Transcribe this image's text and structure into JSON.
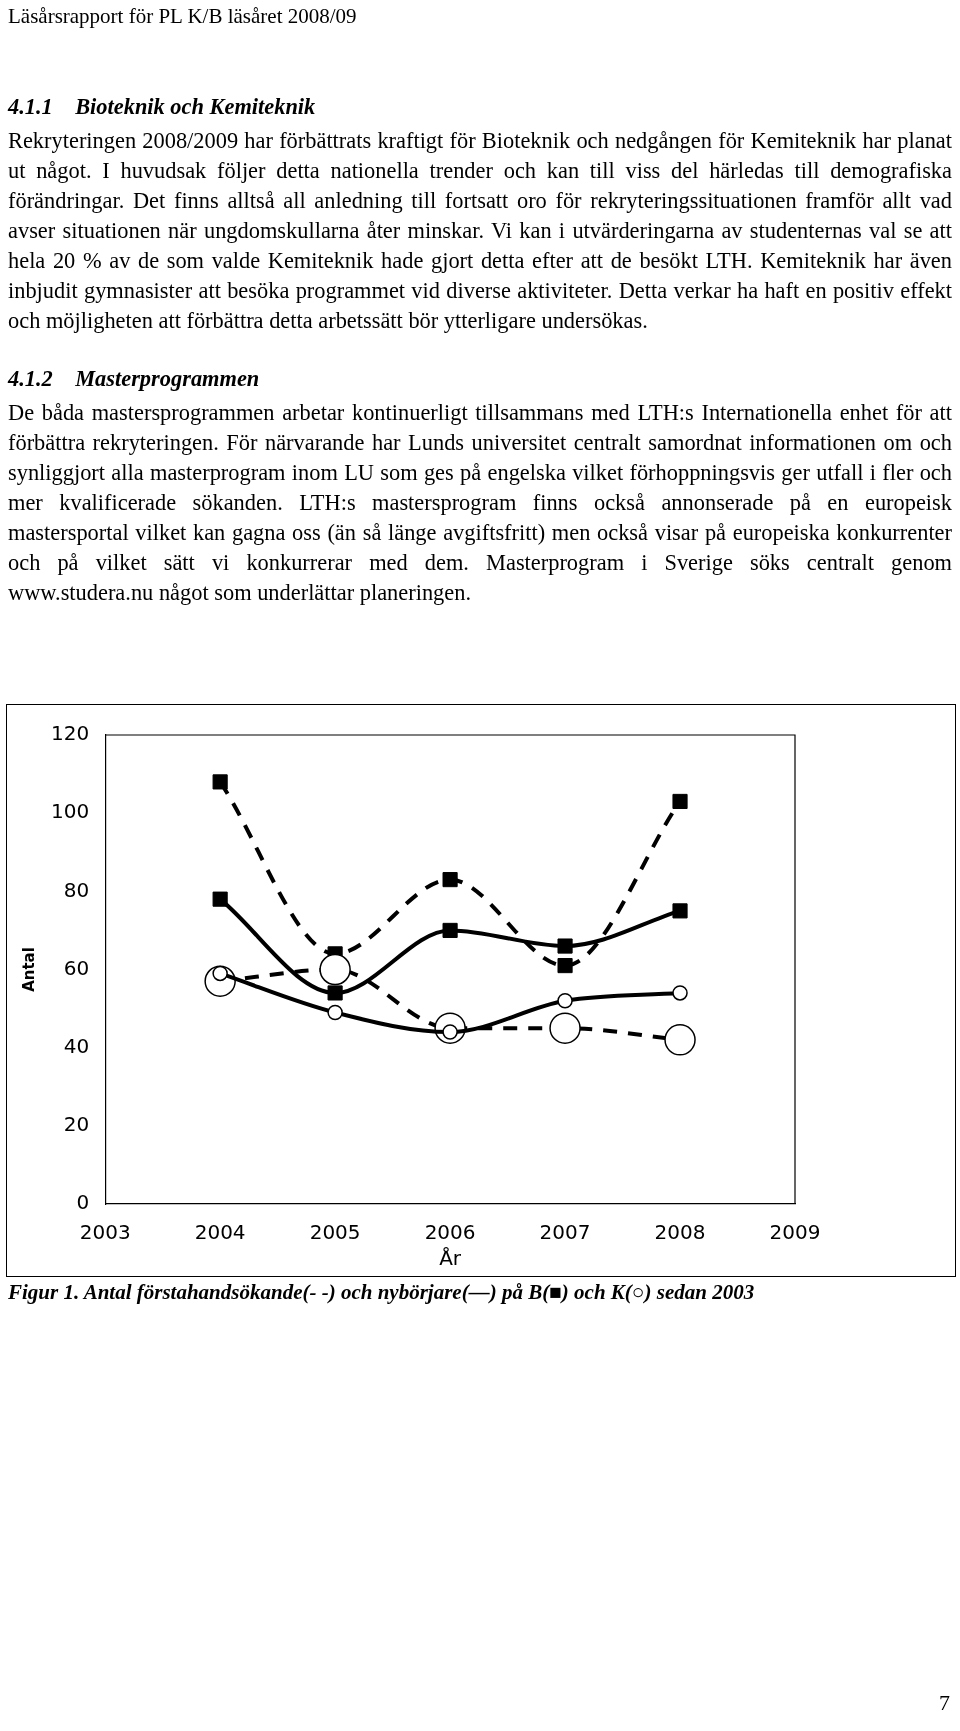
{
  "chart_data": {
    "type": "line",
    "title": "Läsårsrapport för PL K/B läsåret 2008/09",
    "xlabel": "År",
    "ylabel": "Antal",
    "x": [
      2004,
      2005,
      2006,
      2007,
      2008
    ],
    "xlim": [
      2003,
      2009
    ],
    "xticks": [
      2003,
      2004,
      2005,
      2006,
      2007,
      2008,
      2009
    ],
    "ylim": [
      0,
      120
    ],
    "yticks": [
      0,
      20,
      40,
      60,
      80,
      100,
      120
    ],
    "grid": false,
    "legend": false,
    "series": [
      {
        "color": "#000000",
        "marker": "square",
        "line_style": "dashed",
        "values": [
          108,
          64,
          83,
          61,
          103
        ]
      },
      {
        "color": "#000000",
        "marker": "square",
        "line_style": "solid",
        "values": [
          78,
          54,
          70,
          66,
          75
        ]
      },
      {
        "color": "#000000",
        "marker": "circle",
        "line_style": "dashed",
        "values": [
          57,
          60,
          45,
          45,
          42
        ]
      },
      {
        "color": "#000000",
        "marker": "circle",
        "line_style": "solid",
        "values": [
          59,
          49,
          44,
          52,
          54
        ]
      }
    ],
    "annotations": [
      "4.1.1 Bioteknik och Kemiteknik",
      "Rekryteringen 2008/2009 har förbättrats kraftigt för Bioteknik och nedgången för Kemiteknik har planat ut något. I huvudsak följer detta nationella trender och kan till viss del härledas till demografiska förändringar. Det finns alltså all anledning till fortsatt oro för rekryteringssituationen framför allt vad avser situationen när ungdomskullarna åter minskar. Vi kan i utvärderingarna av studenternas val se att hela 20 % av de som valde Kemiteknik hade gjort detta efter att de besökt LTH.  Kemiteknik har även inbjudit gymnasister att besöka programmet vid diverse aktiviteter. Detta verkar ha haft en positiv effekt och möjligheten att förbättra detta arbetssätt bör ytterligare undersökas.",
      "4.1.2 Masterprogrammen",
      "De båda mastersprogrammen arbetar kontinuerligt tillsammans med LTH:s Internationella enhet för att förbättra rekryteringen. För närvarande har Lunds universitet centralt samordnat informationen om och synliggjort alla masterprogram inom LU som ges på engelska vilket förhoppningsvis ger utfall i fler och mer kvalificerade sökanden.  LTH:s mastersprogram finns också annonserade på en europeisk mastersportal vilket kan gagna oss (än så länge avgiftsfritt) men också visar på europeiska konkurrenter och på vilket sätt vi konkurrerar med dem. Masterprogram i Sverige söks centralt genom www.studera.nu något som underlättar planeringen.",
      "Figur 1.  Antal förstahandsökande(- -) och nybörjare(—) på B(■) och K(○) sedan 2003",
      "7"
    ]
  }
}
